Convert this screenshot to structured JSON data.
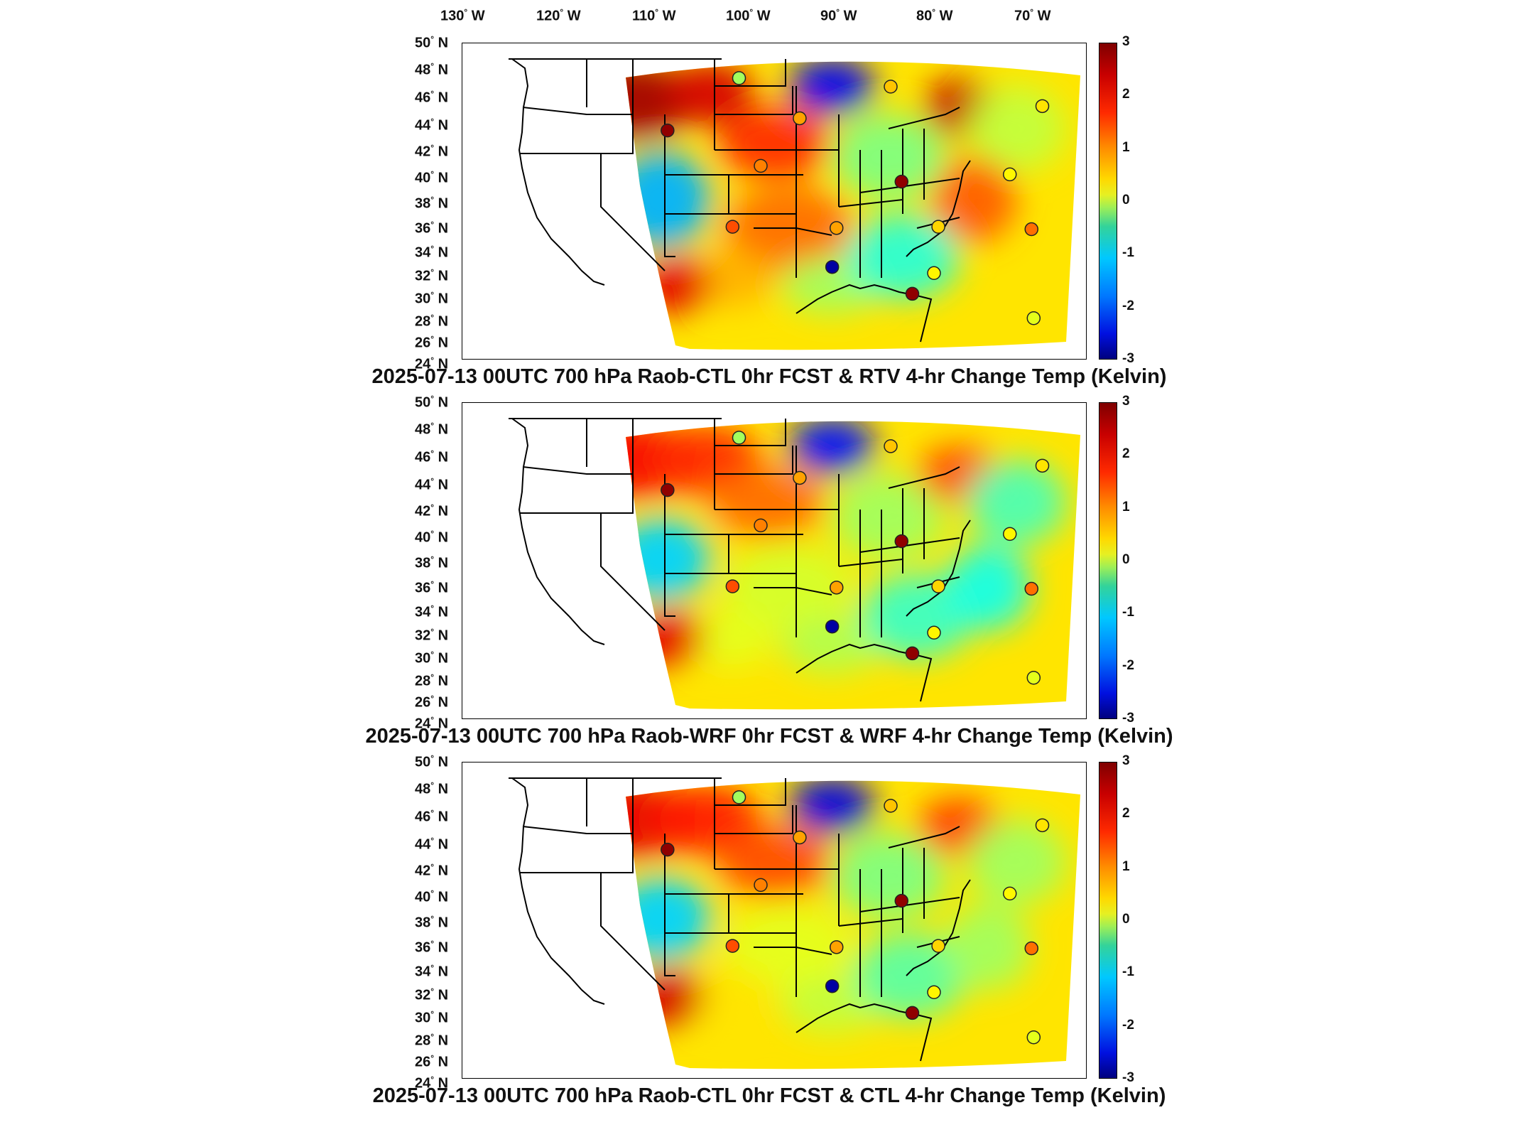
{
  "longitude_labels": [
    {
      "deg": "130",
      "dir": "W"
    },
    {
      "deg": "120",
      "dir": "W"
    },
    {
      "deg": "110",
      "dir": "W"
    },
    {
      "deg": "100",
      "dir": "W"
    },
    {
      "deg": "90",
      "dir": "W"
    },
    {
      "deg": "80",
      "dir": "W"
    },
    {
      "deg": "70",
      "dir": "W"
    }
  ],
  "latitude_labels": [
    {
      "deg": "50",
      "dir": "N"
    },
    {
      "deg": "48",
      "dir": "N"
    },
    {
      "deg": "46",
      "dir": "N"
    },
    {
      "deg": "44",
      "dir": "N"
    },
    {
      "deg": "42",
      "dir": "N"
    },
    {
      "deg": "40",
      "dir": "N"
    },
    {
      "deg": "38",
      "dir": "N"
    },
    {
      "deg": "36",
      "dir": "N"
    },
    {
      "deg": "34",
      "dir": "N"
    },
    {
      "deg": "32",
      "dir": "N"
    },
    {
      "deg": "30",
      "dir": "N"
    },
    {
      "deg": "28",
      "dir": "N"
    },
    {
      "deg": "26",
      "dir": "N"
    },
    {
      "deg": "24",
      "dir": "N"
    }
  ],
  "colorbar": {
    "ticks": [
      "3",
      "2",
      "1",
      "0",
      "-1",
      "-2",
      "-3"
    ],
    "range": [
      -3,
      3
    ],
    "colormap": "jet"
  },
  "panels": [
    {
      "title": "2025-07-13 00UTC 700 hPa Raob-CTL 0hr FCST & RTV 4-hr Change Temp (Kelvin)"
    },
    {
      "title": "2025-07-13 00UTC 700 hPa Raob-WRF 0hr FCST & WRF 4-hr Change Temp (Kelvin)"
    },
    {
      "title": "2025-07-13 00UTC 700 hPa Raob-CTL 0hr FCST & CTL 4-hr Change Temp (Kelvin)"
    }
  ],
  "stations": [
    {
      "lon": -111.0,
      "lat": 47.5,
      "value": 0.2
    },
    {
      "lon": -104.0,
      "lat": 46.8,
      "value": 1.1
    },
    {
      "lon": -97.0,
      "lat": 45.2,
      "value": 0.9
    },
    {
      "lon": -93.4,
      "lat": 48.5,
      "value": 0.4
    },
    {
      "lon": -108.2,
      "lat": 44.2,
      "value": 1.3
    },
    {
      "lon": -114.3,
      "lat": 43.2,
      "value": 2.9
    },
    {
      "lon": -93.6,
      "lat": 44.8,
      "value": 2.0
    },
    {
      "lon": -90.0,
      "lat": 41.9,
      "value": 2.6
    },
    {
      "lon": -91.8,
      "lat": 38.4,
      "value": 0.9
    },
    {
      "lon": -98.5,
      "lat": 39.6,
      "value": 0.8
    },
    {
      "lon": -103.5,
      "lat": 39.0,
      "value": 2.9
    },
    {
      "lon": -110.0,
      "lat": 40.3,
      "value": 1.5
    },
    {
      "lon": -111.3,
      "lat": 35.3,
      "value": 1.8
    },
    {
      "lon": -106.5,
      "lat": 35.2,
      "value": 1.3
    },
    {
      "lon": -101.8,
      "lat": 35.3,
      "value": 1.0
    },
    {
      "lon": -97.5,
      "lat": 35.1,
      "value": 1.6
    },
    {
      "lon": -93.5,
      "lat": 34.5,
      "value": 0.9
    },
    {
      "lon": -90.1,
      "lat": 32.3,
      "value": 1.5
    },
    {
      "lon": -86.7,
      "lat": 33.2,
      "value": 1.0
    },
    {
      "lon": -84.4,
      "lat": 33.7,
      "value": 1.5
    },
    {
      "lon": -83.7,
      "lat": 36.4,
      "value": 0.7
    },
    {
      "lon": -80.2,
      "lat": 33.0,
      "value": 0.6
    },
    {
      "lon": -85.9,
      "lat": 41.0,
      "value": 1.1
    },
    {
      "lon": -86.3,
      "lat": 43.1,
      "value": 0.9
    },
    {
      "lon": -88.5,
      "lat": 46.6,
      "value": 0.5
    },
    {
      "lon": -84.6,
      "lat": 44.9,
      "value": 0.2
    },
    {
      "lon": -81.0,
      "lat": 40.6,
      "value": 0.6
    },
    {
      "lon": -77.3,
      "lat": 38.0,
      "value": 0.4
    },
    {
      "lon": -75.5,
      "lat": 39.1,
      "value": 0.5
    },
    {
      "lon": -76.4,
      "lat": 43.2,
      "value": 0.7
    },
    {
      "lon": -73.4,
      "lat": 42.8,
      "value": 0.6
    },
    {
      "lon": -70.9,
      "lat": 44.5,
      "value": 0.3
    },
    {
      "lon": -106.7,
      "lat": 32.0,
      "value": -2.8
    },
    {
      "lon": -102.0,
      "lat": 31.5,
      "value": 0.8
    },
    {
      "lon": -103.0,
      "lat": 29.8,
      "value": 2.9
    },
    {
      "lon": -97.4,
      "lat": 27.8,
      "value": 0.6
    },
    {
      "lon": -92.5,
      "lat": 30.5,
      "value": 0.8
    },
    {
      "lon": -88.0,
      "lat": 30.6,
      "value": 0.4
    },
    {
      "lon": -81.0,
      "lat": 27.9,
      "value": 0.5
    },
    {
      "lon": -80.6,
      "lat": 36.0,
      "value": 0.3
    }
  ]
}
